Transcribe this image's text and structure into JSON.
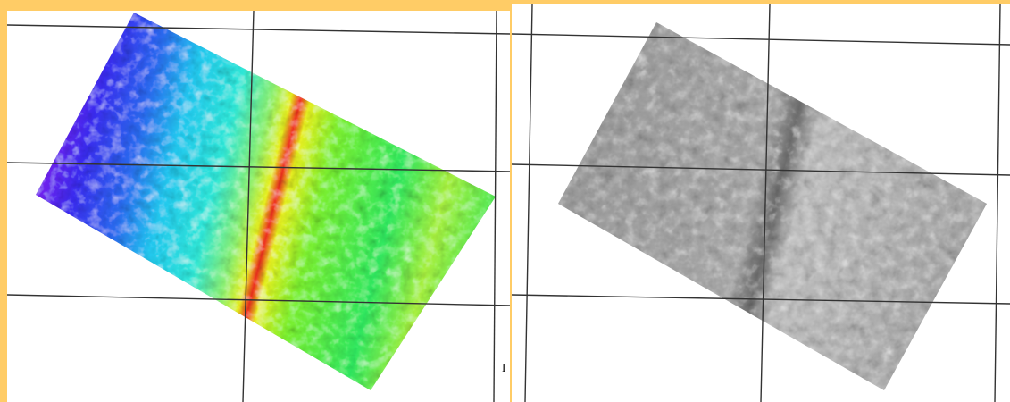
{
  "left_panel": {
    "marker": "I"
  }
}
